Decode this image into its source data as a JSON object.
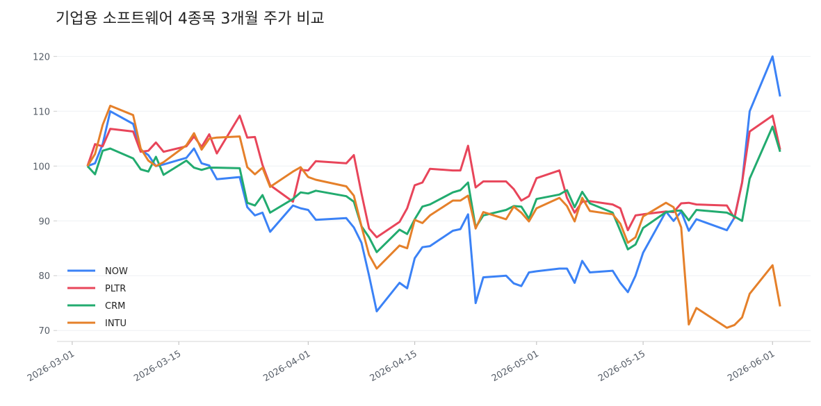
{
  "chart_data": {
    "type": "line",
    "title": "기업용 소프트웨어 4종목 3개월 주가 비교",
    "x": [
      "2026-03-03",
      "2026-03-04",
      "2026-03-05",
      "2026-03-06",
      "2026-03-09",
      "2026-03-10",
      "2026-03-11",
      "2026-03-12",
      "2026-03-13",
      "2026-03-16",
      "2026-03-17",
      "2026-03-18",
      "2026-03-19",
      "2026-03-20",
      "2026-03-23",
      "2026-03-24",
      "2026-03-25",
      "2026-03-26",
      "2026-03-27",
      "2026-03-30",
      "2026-03-31",
      "2026-04-01",
      "2026-04-02",
      "2026-04-06",
      "2026-04-07",
      "2026-04-08",
      "2026-04-09",
      "2026-04-10",
      "2026-04-13",
      "2026-04-14",
      "2026-04-15",
      "2026-04-16",
      "2026-04-17",
      "2026-04-20",
      "2026-04-21",
      "2026-04-22",
      "2026-04-23",
      "2026-04-24",
      "2026-04-27",
      "2026-04-28",
      "2026-04-29",
      "2026-04-30",
      "2026-05-01",
      "2026-05-04",
      "2026-05-05",
      "2026-05-06",
      "2026-05-07",
      "2026-05-08",
      "2026-05-11",
      "2026-05-12",
      "2026-05-13",
      "2026-05-14",
      "2026-05-15",
      "2026-05-18",
      "2026-05-19",
      "2026-05-20",
      "2026-05-21",
      "2026-05-22",
      "2026-05-26",
      "2026-05-27",
      "2026-05-28",
      "2026-05-29",
      "2026-06-01",
      "2026-06-02"
    ],
    "series": [
      {
        "name": "NOW",
        "color": "#3b82f6",
        "values": [
          100,
          100.5,
          104,
          110,
          107.7,
          103,
          102,
          100,
          100.3,
          101.5,
          103.2,
          100.5,
          100.1,
          97.6,
          98,
          92.5,
          91,
          91.5,
          88,
          92.8,
          92.3,
          92,
          90.2,
          90.5,
          88.8,
          86,
          80,
          73.5,
          78.7,
          77.7,
          83.2,
          85.2,
          85.4,
          88.2,
          88.5,
          91.2,
          75,
          79.7,
          80,
          78.6,
          78.1,
          80.6,
          80.8,
          81.3,
          81.3,
          78.7,
          82.7,
          80.6,
          80.9,
          78.7,
          77,
          80,
          84.2,
          91.7,
          90,
          91.7,
          88.2,
          90.3,
          88.3,
          90.6,
          97,
          110,
          120,
          112.7
        ]
      },
      {
        "name": "PLTR",
        "color": "#e8455a",
        "values": [
          100,
          104,
          103.6,
          106.8,
          106.3,
          102.6,
          102.8,
          104.3,
          102.6,
          103.6,
          105.4,
          103.5,
          105.8,
          102.3,
          109.2,
          105.2,
          105.3,
          100.2,
          96.5,
          93.5,
          99.3,
          99.2,
          100.9,
          100.5,
          102,
          95,
          88.6,
          87,
          89.8,
          92.3,
          96.5,
          97,
          99.5,
          99.2,
          99.2,
          103.7,
          96.1,
          97.2,
          97.2,
          95.8,
          93.7,
          94.5,
          97.8,
          99.2,
          94.2,
          91.5,
          93.5,
          93.6,
          93,
          92.3,
          88.3,
          91,
          91.2,
          91.7,
          91.6,
          93.2,
          93.3,
          93,
          92.8,
          90.5,
          97,
          106.3,
          109.2,
          103
        ]
      },
      {
        "name": "CRM",
        "color": "#22ab6f",
        "values": [
          100,
          98.5,
          102.8,
          103.2,
          101.4,
          99.4,
          99,
          101.7,
          98.4,
          101,
          99.7,
          99.3,
          99.7,
          99.7,
          99.6,
          93.3,
          92.8,
          94.7,
          91.5,
          94,
          95.2,
          95,
          95.5,
          94.5,
          93.5,
          89,
          87,
          84.3,
          88.4,
          87.6,
          90.3,
          92.6,
          93,
          95.2,
          95.6,
          97,
          88.8,
          91,
          92,
          92.7,
          92.6,
          90.4,
          94,
          94.8,
          95.6,
          92.5,
          95.3,
          93.2,
          91.5,
          88.2,
          84.8,
          85.7,
          88.7,
          91.6,
          91.8,
          91.9,
          90.1,
          92,
          91.5,
          90.8,
          90,
          97.7,
          107.2,
          102.6
        ]
      },
      {
        "name": "INTU",
        "color": "#e5802a",
        "values": [
          100,
          102.2,
          107.5,
          111,
          109.3,
          103.2,
          101,
          100,
          100.7,
          103.8,
          106,
          103,
          105,
          105.2,
          105.4,
          99.8,
          98.5,
          99.7,
          96.2,
          99,
          99.8,
          98,
          97.5,
          96.3,
          94.6,
          89,
          83.8,
          81.3,
          85.5,
          85,
          90.2,
          89.6,
          91,
          93.7,
          93.7,
          94.6,
          88.6,
          91.6,
          90.3,
          92.6,
          91.5,
          89.9,
          92.3,
          94.2,
          92.7,
          89.9,
          94.2,
          91.8,
          91.2,
          89.5,
          86,
          87,
          90.8,
          93.3,
          92.5,
          88.8,
          71.1,
          74.1,
          70.5,
          71,
          72.4,
          76.7,
          81.9,
          74.4
        ]
      }
    ],
    "xlim": [
      "2026-02-27",
      "2026-06-06"
    ],
    "xticks": [
      "2026-03-01",
      "2026-03-15",
      "2026-04-01",
      "2026-04-15",
      "2026-05-01",
      "2026-05-15",
      "2026-06-01"
    ],
    "ylim": [
      68,
      122.7
    ],
    "yticks": [
      70,
      80,
      90,
      100,
      110,
      120
    ],
    "grid": true,
    "legend": "lower left"
  }
}
